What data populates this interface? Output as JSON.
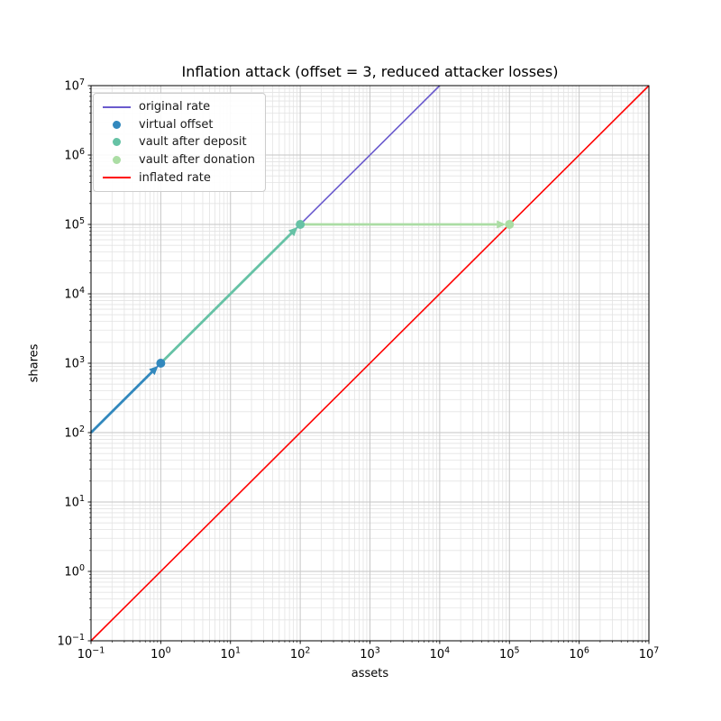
{
  "figure": {
    "background": "#ffffff",
    "axis_color": "#000000"
  },
  "chart_data": {
    "type": "line",
    "title": "Inflation attack (offset = 3, reduced attacker losses)",
    "xlabel": "assets",
    "ylabel": "shares",
    "x_scale": "log",
    "y_scale": "log",
    "xlim": [
      0.1,
      10000000
    ],
    "ylim": [
      0.1,
      10000000
    ],
    "x_tick_exponents": [
      -1,
      0,
      1,
      2,
      3,
      4,
      5,
      6,
      7
    ],
    "y_tick_exponents": [
      -1,
      0,
      1,
      2,
      3,
      4,
      5,
      6,
      7
    ],
    "grid": {
      "major": true,
      "minor": true,
      "major_color": "#c6c6c6",
      "minor_color": "#e3e3e3"
    },
    "legend_position": "upper-left",
    "legend": [
      {
        "label": "original rate",
        "marker": "line",
        "color": "#6a5acd"
      },
      {
        "label": "virtual offset",
        "marker": "dot",
        "color": "#3288bd"
      },
      {
        "label": "vault after deposit",
        "marker": "dot",
        "color": "#66c2a5"
      },
      {
        "label": "vault after donation",
        "marker": "dot",
        "color": "#abdda4"
      },
      {
        "label": "inflated rate",
        "marker": "line",
        "color": "#ff0000"
      }
    ],
    "series": [
      {
        "name": "original rate",
        "color": "#6a5acd",
        "width": 1.6,
        "points": [
          [
            0.1,
            100
          ],
          [
            10000,
            10000000
          ]
        ]
      },
      {
        "name": "inflated rate",
        "color": "#ff0000",
        "width": 1.6,
        "points": [
          [
            0.1,
            0.1
          ],
          [
            10000000,
            10000000
          ]
        ]
      }
    ],
    "arrows": [
      {
        "name": "virtual offset arrow",
        "color": "#3288bd",
        "from": [
          0.1,
          100
        ],
        "to": [
          1,
          1000
        ]
      },
      {
        "name": "vault after deposit arrow",
        "color": "#66c2a5",
        "from": [
          1,
          1000
        ],
        "to": [
          100,
          100000
        ]
      },
      {
        "name": "vault after donation arrow",
        "color": "#abdda4",
        "from": [
          100,
          100000
        ],
        "to": [
          100000,
          100000
        ]
      }
    ],
    "points": [
      {
        "name": "virtual offset",
        "color": "#3288bd",
        "x": 1,
        "y": 1000
      },
      {
        "name": "vault after deposit",
        "color": "#66c2a5",
        "x": 100,
        "y": 100000
      },
      {
        "name": "vault after donation",
        "color": "#abdda4",
        "x": 100000,
        "y": 100000
      }
    ]
  }
}
